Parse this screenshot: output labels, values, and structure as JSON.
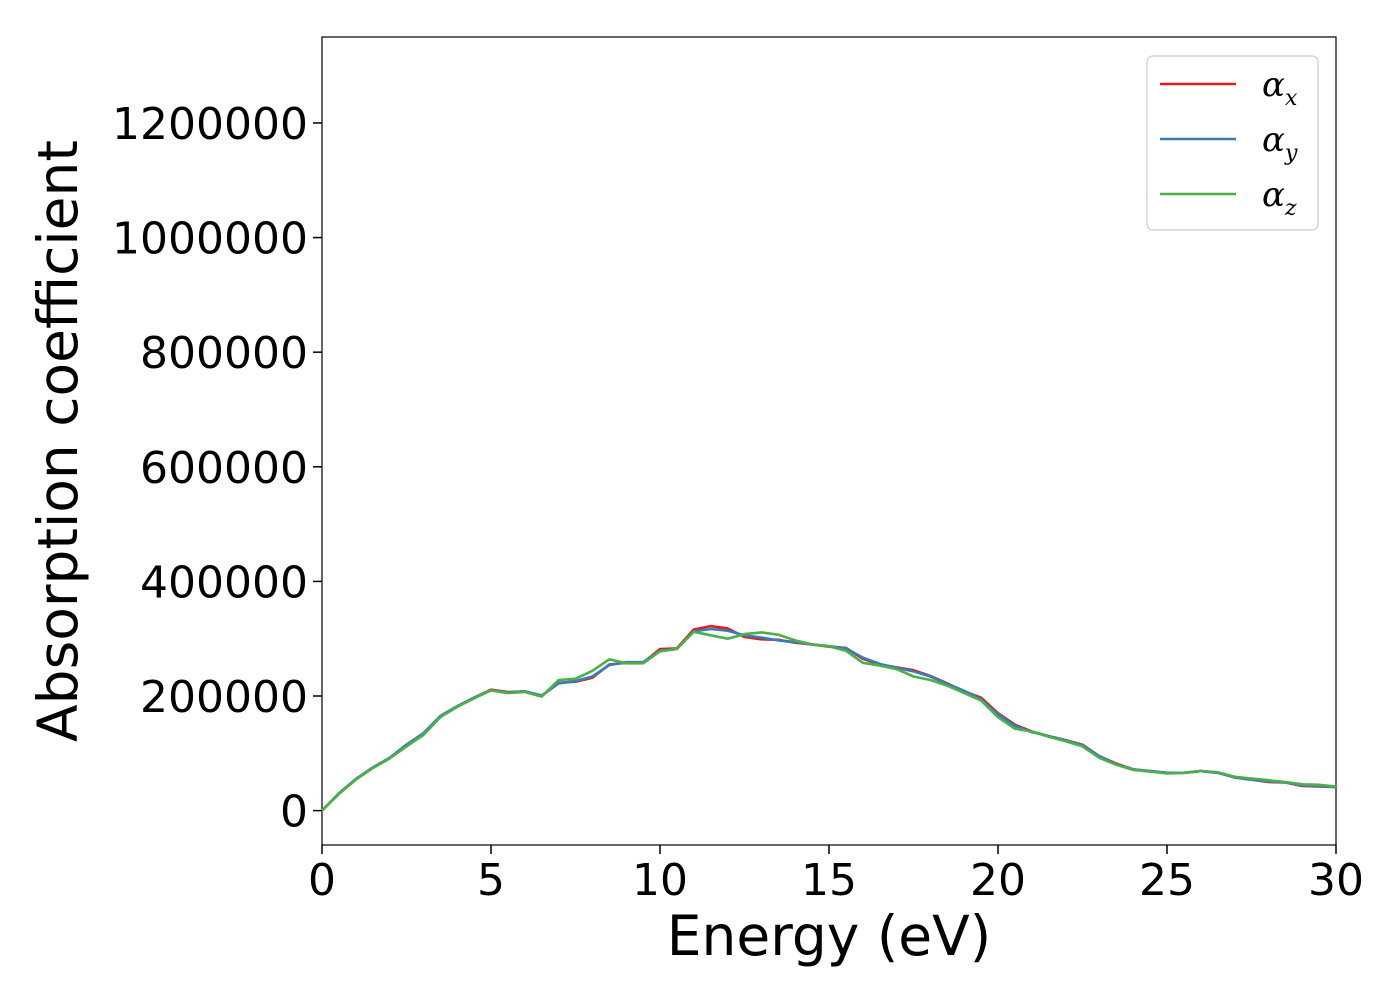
{
  "chart_data": {
    "type": "line",
    "title": "",
    "xlabel": "Energy (eV)",
    "ylabel": "Absorption coefficient",
    "xlim": [
      0,
      30
    ],
    "ylim": [
      -60000,
      1350000
    ],
    "xticks": [
      0,
      5,
      10,
      15,
      20,
      25,
      30
    ],
    "xtick_labels": [
      "0",
      "5",
      "10",
      "15",
      "20",
      "25",
      "30"
    ],
    "yticks": [
      0,
      200000,
      400000,
      600000,
      800000,
      1000000,
      1200000
    ],
    "ytick_labels": [
      "0",
      "200000",
      "400000",
      "600000",
      "800000",
      "1000000",
      "1200000"
    ],
    "grid": false,
    "legend_position": "top-right",
    "x": [
      0,
      0.5,
      1,
      1.5,
      2,
      2.5,
      3,
      3.5,
      4,
      4.5,
      5,
      5.5,
      6,
      6.5,
      7,
      7.5,
      8,
      8.5,
      9,
      9.5,
      10,
      10.5,
      11,
      11.5,
      12,
      12.5,
      13,
      13.5,
      14,
      14.5,
      15,
      15.5,
      16,
      16.5,
      17,
      17.5,
      18,
      18.5,
      19,
      19.5,
      20,
      20.5,
      21,
      21.5,
      22,
      22.5,
      23,
      23.5,
      24,
      24.5,
      25,
      25.5,
      26,
      26.5,
      27,
      27.5,
      28,
      28.5,
      29,
      29.5,
      30
    ],
    "series": [
      {
        "name": "α",
        "subscript": "x",
        "color": "#e41a1c",
        "values": [
          0,
          30000,
          55000,
          75000,
          92000,
          115000,
          135000,
          165000,
          182000,
          197000,
          211000,
          207000,
          208000,
          200000,
          223000,
          225000,
          232000,
          255000,
          258000,
          258000,
          282000,
          283000,
          316000,
          322000,
          318000,
          303000,
          299000,
          298000,
          293000,
          290000,
          286000,
          284000,
          265000,
          255000,
          250000,
          245000,
          235000,
          222000,
          208000,
          197000,
          170000,
          150000,
          138000,
          130000,
          123000,
          115000,
          95000,
          82000,
          72000,
          69000,
          66000,
          66000,
          69000,
          66000,
          58000,
          54000,
          50000,
          49000,
          43000,
          42000,
          41000
        ]
      },
      {
        "name": "α",
        "subscript": "y",
        "color": "#377eb8",
        "values": [
          0,
          30000,
          55000,
          75000,
          92000,
          115000,
          135000,
          165000,
          182000,
          197000,
          210000,
          206000,
          208000,
          201000,
          222000,
          226000,
          234000,
          254000,
          259000,
          259000,
          279000,
          282000,
          313000,
          317000,
          314000,
          306000,
          302000,
          297000,
          294000,
          290000,
          287000,
          283000,
          267000,
          256000,
          249000,
          243000,
          234000,
          221000,
          209000,
          194000,
          168000,
          148000,
          137000,
          130000,
          123000,
          114000,
          95000,
          81000,
          72000,
          69000,
          66000,
          66000,
          69000,
          66000,
          58000,
          54000,
          51000,
          49000,
          44000,
          43000,
          41000
        ]
      },
      {
        "name": "α",
        "subscript": "z",
        "color": "#4daf4a",
        "values": [
          0,
          29000,
          54000,
          74000,
          91000,
          112000,
          132000,
          163000,
          181000,
          196000,
          210000,
          205000,
          207000,
          199000,
          228000,
          230000,
          244000,
          264000,
          257000,
          257000,
          278000,
          282000,
          312000,
          306000,
          300000,
          308000,
          311000,
          307000,
          297000,
          290000,
          287000,
          279000,
          258000,
          253000,
          247000,
          234000,
          228000,
          218000,
          205000,
          192000,
          163000,
          143000,
          138000,
          129000,
          121000,
          112000,
          92000,
          80000,
          71000,
          68000,
          65000,
          66000,
          69000,
          67000,
          59000,
          56000,
          53000,
          50000,
          46000,
          45000,
          42000
        ]
      }
    ]
  }
}
